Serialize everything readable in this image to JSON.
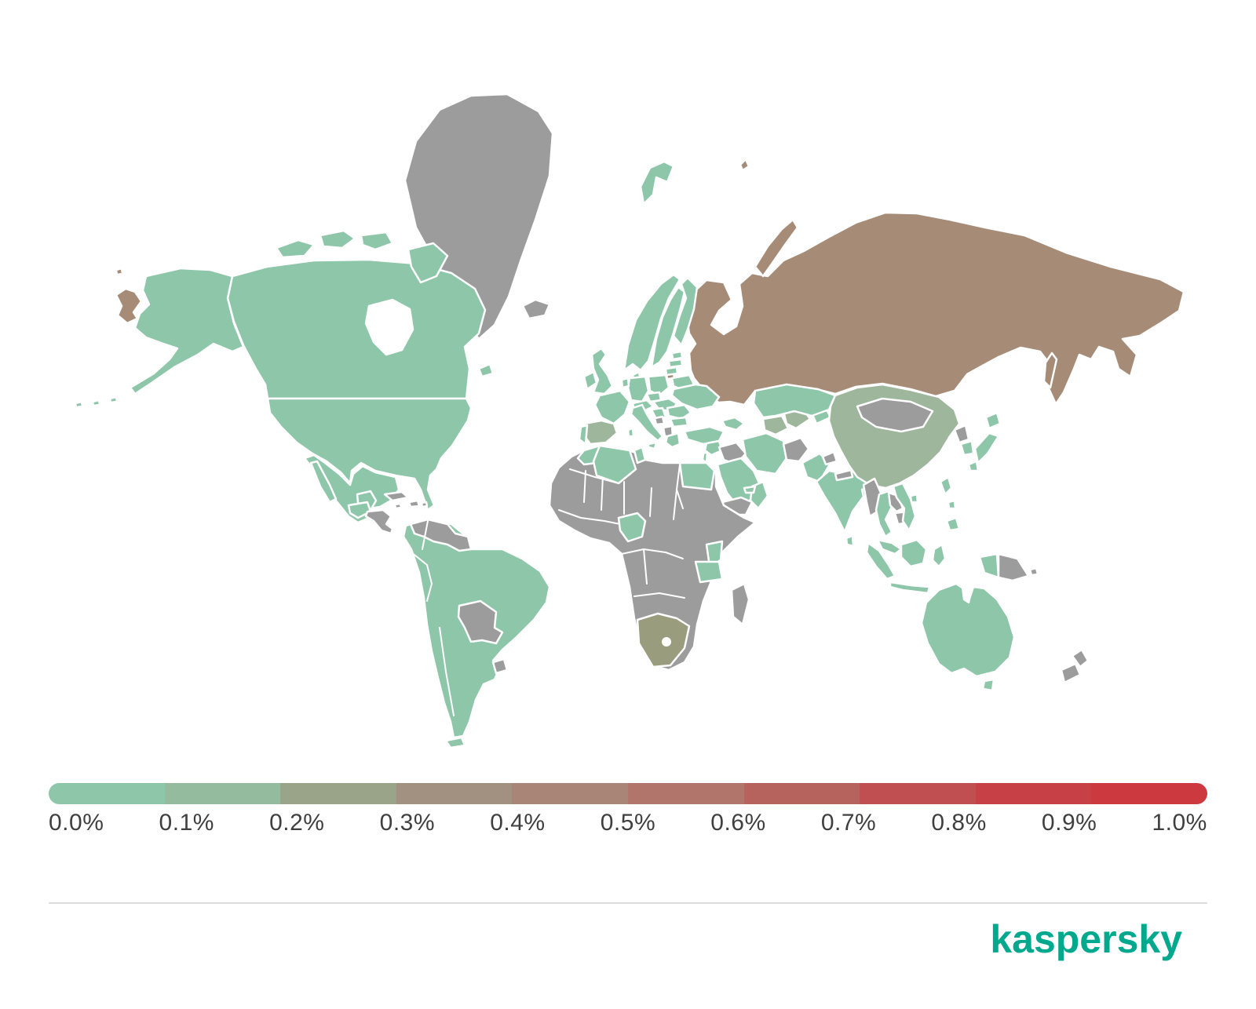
{
  "page": {
    "background": "#ffffff"
  },
  "branding": {
    "logo_text": "kaspersky",
    "logo_color": "#00a88e"
  },
  "legend": {
    "labels": [
      "0.0%",
      "0.1%",
      "0.2%",
      "0.3%",
      "0.4%",
      "0.5%",
      "0.6%",
      "0.7%",
      "0.8%",
      "0.9%",
      "1.0%"
    ],
    "segment_colors": [
      "#8ec6aa",
      "#94bb9d",
      "#9aa489",
      "#a29180",
      "#a98578",
      "#b1756b",
      "#b6635e",
      "#bf4f50",
      "#c74046",
      "#cc3a40"
    ],
    "label_color": "#3f3f3f"
  },
  "map": {
    "border_color": "#ffffff",
    "buckets": {
      "b00": {
        "range": "0.0%-0.1%",
        "color": "#8ec6aa"
      },
      "b01": {
        "range": "0.1%-0.2%",
        "color": "#9eb69b"
      },
      "b02": {
        "range": "0.2%-0.3%",
        "color": "#9a9d7d"
      },
      "b04": {
        "range": "0.4%-0.5%",
        "color": "#a68c77"
      },
      "nodata": {
        "range": "no data",
        "color": "#9c9c9c"
      }
    },
    "regions": {
      "russia": "b04",
      "novaya-zemlya": "b04",
      "franz-josef": "b04",
      "kaliningrad": "b04",
      "chukotka-sliver": "b04",
      "chukotka-dot": "b04",
      "sakhalin": "b04",
      "greenland": "nodata",
      "iceland": "nodata",
      "canada": "b00",
      "arctic-island-1": "b00",
      "arctic-island-2": "b00",
      "arctic-island-3": "b00",
      "baffin": "b00",
      "newfoundland": "b00",
      "alaska": "b00",
      "aleutians-1": "b00",
      "aleutians-2": "b00",
      "aleutians-3": "b00",
      "usa": "b00",
      "mexico": "b00",
      "baja": "b00",
      "yucatan": "b00",
      "guatemala": "b00",
      "central-america": "nodata",
      "cuba": "nodata",
      "hispaniola": "nodata",
      "jamaica": "nodata",
      "puerto-rico": "nodata",
      "south-america": "b00",
      "tierra-del-fuego": "b00",
      "venezuela-guyanas": "nodata",
      "bolivia-paraguay": "nodata",
      "uruguay": "nodata",
      "svalbard": "b00",
      "ireland": "b00",
      "uk": "b00",
      "norway": "b00",
      "sweden": "b00",
      "finland": "b00",
      "denmark": "b00",
      "estonia": "b00",
      "latvia": "b00",
      "lithuania": "b00",
      "belarus": "b00",
      "poland": "b00",
      "germany": "b00",
      "benelux": "b00",
      "france": "b00",
      "alps": "b00",
      "czech": "b00",
      "spain": "b01",
      "portugal": "b00",
      "italy": "b00",
      "sicily": "b00",
      "sardinia": "b00",
      "hungary-slovakia": "b00",
      "croatia-serbia": "b00",
      "romania": "b00",
      "bulgaria": "b00",
      "bosnia": "nodata",
      "albania-macedonia": "nodata",
      "greece": "b00",
      "ukraine": "b00",
      "turkey": "b00",
      "caucasus": "b00",
      "syria-levant": "b00",
      "israel": "b00",
      "iraq": "nodata",
      "saudi": "b00",
      "yemen": "nodata",
      "oman": "b00",
      "uae": "b00",
      "iran": "b00",
      "afghanistan": "nodata",
      "turkmenistan": "b01",
      "uzbekistan": "b01",
      "kyrgyz-tajik": "b00",
      "kazakhstan": "b00",
      "pakistan": "b00",
      "kashmir": "nodata",
      "india": "b00",
      "nepal": "nodata",
      "bangladesh": "b00",
      "sri-lanka": "b00",
      "china": "b01",
      "mongolia": "nodata",
      "north-korea": "nodata",
      "south-korea": "b00",
      "hokkaido": "b00",
      "honshu": "b00",
      "kyushu": "b00",
      "taiwan": "b00",
      "hainan": "b00",
      "myanmar": "nodata",
      "thailand": "b00",
      "laos": "nodata",
      "cambodia": "nodata",
      "vietnam": "b00",
      "malaysia": "b00",
      "sumatra": "b00",
      "java": "b00",
      "borneo": "b00",
      "sulawesi": "b00",
      "west-papua": "b00",
      "png": "nodata",
      "new-britain": "nodata",
      "luzon": "b00",
      "visayas": "b00",
      "mindanao": "b00",
      "australia": "b00",
      "tasmania": "b00",
      "nz-north": "nodata",
      "nz-south": "nodata",
      "africa-base": "nodata",
      "morocco": "b00",
      "algeria": "b00",
      "tunisia": "b00",
      "egypt": "b00",
      "nigeria": "b00",
      "kenya": "b00",
      "tanzania": "b00",
      "south-africa": "b02",
      "madagascar": "nodata"
    }
  },
  "chart_data": {
    "type": "heatmap",
    "subtype": "world-choropleth",
    "title": "",
    "legend_scale": {
      "min": "0.0%",
      "max": "1.0%",
      "step": "0.1%",
      "tick_labels": [
        "0.0%",
        "0.1%",
        "0.2%",
        "0.3%",
        "0.4%",
        "0.5%",
        "0.6%",
        "0.7%",
        "0.8%",
        "0.9%",
        "1.0%"
      ],
      "colors_low_to_high": [
        "#8ec6aa",
        "#94bb9d",
        "#9aa489",
        "#a29180",
        "#a98578",
        "#b1756b",
        "#b6635e",
        "#bf4f50",
        "#c74046",
        "#cc3a40"
      ],
      "no_data_color": "#9c9c9c",
      "position": "bottom"
    },
    "values_by_region": {
      "Russia (incl. Kaliningrad)": "0.4-0.5%",
      "China": "0.1-0.2%",
      "Spain": "0.1-0.2%",
      "Uzbekistan / Turkmenistan": "0.1-0.2%",
      "South Africa": "0.2-0.3%",
      "Canada / USA / Mexico": "0.0-0.1%",
      "Brazil, Argentina, Chile, Colombia, Peru, Ecuador": "0.0-0.1%",
      "Most of Europe (UK, France, Germany, Italy, Scandinavia, Ukraine, etc.)": "0.0-0.1%",
      "Turkey, Saudi Arabia, Iran, Oman": "0.0-0.1%",
      "Kazakhstan, Pakistan, India, Bangladesh, Sri Lanka": "0.0-0.1%",
      "Japan, South Korea, Taiwan, Thailand, Vietnam, Malaysia, Indonesia, Philippines": "0.0-0.1%",
      "Australia": "0.0-0.1%",
      "Morocco, Algeria, Tunisia, Egypt, Nigeria, Kenya, Tanzania": "0.0-0.1%",
      "No data (gray)": "Greenland, Iceland, most of Sub-Saharan Africa, Libya, Madagascar, Iraq, Yemen, Afghanistan, Mongolia, North Korea, Nepal, Myanmar, Laos, Cambodia, Papua New Guinea, New Zealand, Venezuela, Guyanas, Bolivia, Paraguay, Uruguay, Cuba, Honduras-Panama"
    }
  }
}
